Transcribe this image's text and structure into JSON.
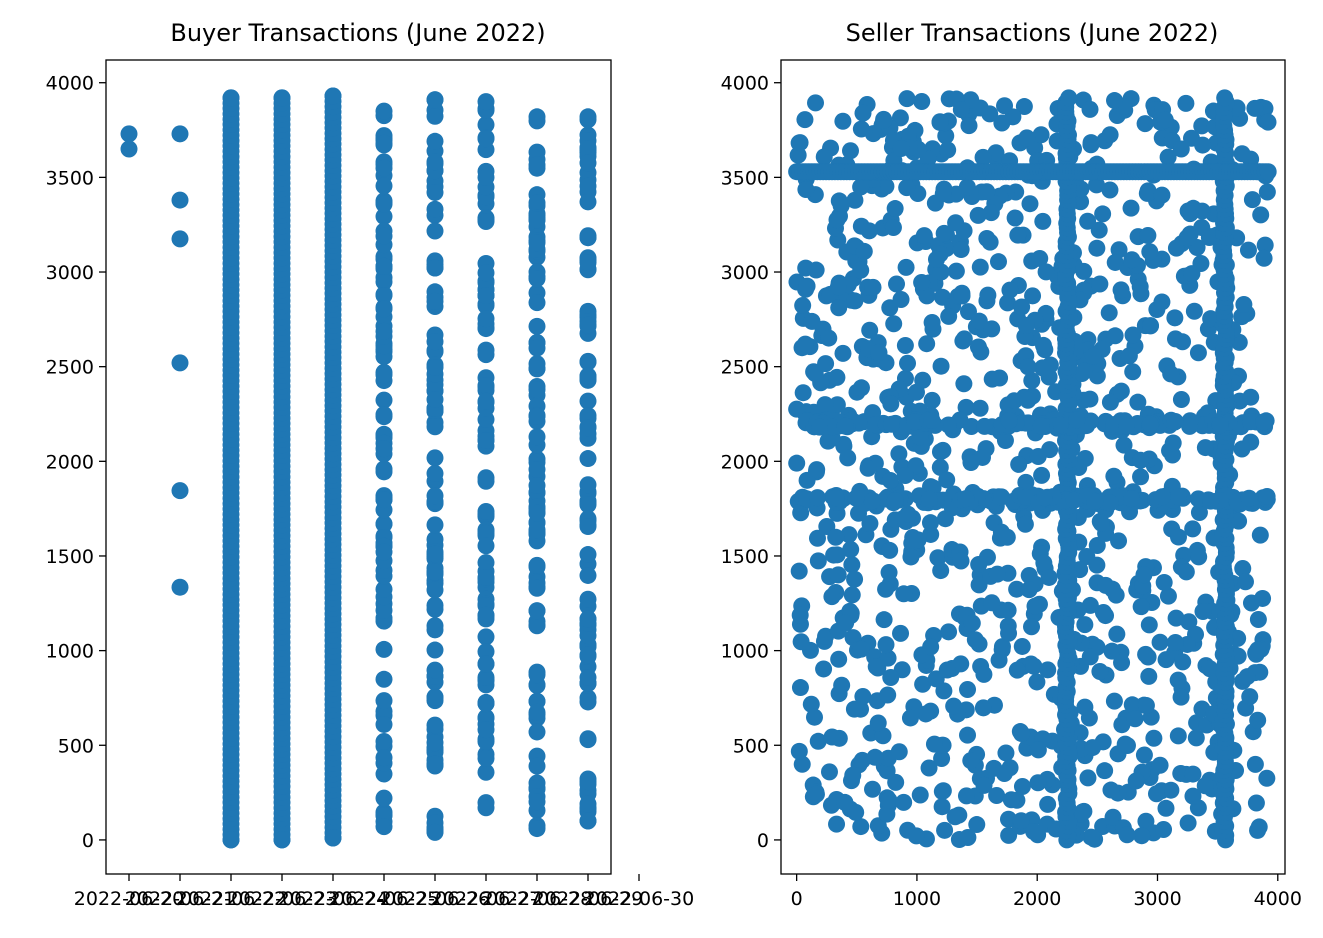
{
  "chart_data": [
    {
      "type": "scatter",
      "title": "Buyer Transactions (June 2022)",
      "xlabel": "",
      "ylabel": "",
      "x_tick_labels": [
        "2022-06-20",
        "2022-06-21",
        "2022-06-22",
        "2022-06-23",
        "2022-06-24",
        "2022-06-25",
        "2022-06-26",
        "2022-06-27",
        "2022-06-28",
        "2022-06-29",
        "2022-06-30"
      ],
      "y_ticks": [
        0,
        500,
        1000,
        1500,
        2000,
        2500,
        3000,
        3500,
        4000
      ],
      "ylim": [
        -180,
        4120
      ],
      "grid": false,
      "marker_color": "#1f77b4",
      "series": [
        {
          "points": [
            {
              "x": "2022-06-20",
              "y": 3730
            },
            {
              "x": "2022-06-20",
              "y": 3650
            },
            {
              "x": "2022-06-21",
              "y": 3730
            },
            {
              "x": "2022-06-21",
              "y": 3380
            },
            {
              "x": "2022-06-21",
              "y": 3175
            },
            {
              "x": "2022-06-21",
              "y": 2520
            },
            {
              "x": "2022-06-21",
              "y": 1845
            },
            {
              "x": "2022-06-21",
              "y": 1335
            }
          ],
          "dense_columns": [
            {
              "x": "2022-06-22",
              "y_range": [
                0,
                3920
              ]
            },
            {
              "x": "2022-06-23",
              "y_range": [
                0,
                3920
              ]
            },
            {
              "x": "2022-06-24",
              "y_range": [
                10,
                3930
              ]
            },
            {
              "x": "2022-06-25",
              "y_range": [
                70,
                3850
              ]
            },
            {
              "x": "2022-06-26",
              "y_range": [
                40,
                3910
              ]
            },
            {
              "x": "2022-06-27",
              "y_range": [
                170,
                3900
              ]
            },
            {
              "x": "2022-06-28",
              "y_range": [
                60,
                3820
              ]
            },
            {
              "x": "2022-06-29",
              "y_range": [
                100,
                3820
              ]
            }
          ]
        }
      ]
    },
    {
      "type": "scatter",
      "title": "Seller Transactions (June 2022)",
      "xlabel": "",
      "ylabel": "",
      "x_ticks": [
        0,
        1000,
        2000,
        3000,
        4000
      ],
      "y_ticks": [
        0,
        500,
        1000,
        1500,
        2000,
        2500,
        3000,
        3500,
        4000
      ],
      "xlim": [
        -130,
        4060
      ],
      "ylim": [
        -180,
        4120
      ],
      "grid": false,
      "marker_color": "#1f77b4",
      "series": [
        {
          "x_range": [
            0,
            3920
          ],
          "y_range": [
            0,
            3920
          ],
          "dense_vertical_lines_x": [
            2250,
            3560
          ],
          "dense_horizontal_lines_y": [
            3530,
            2200,
            1800
          ]
        }
      ]
    }
  ]
}
